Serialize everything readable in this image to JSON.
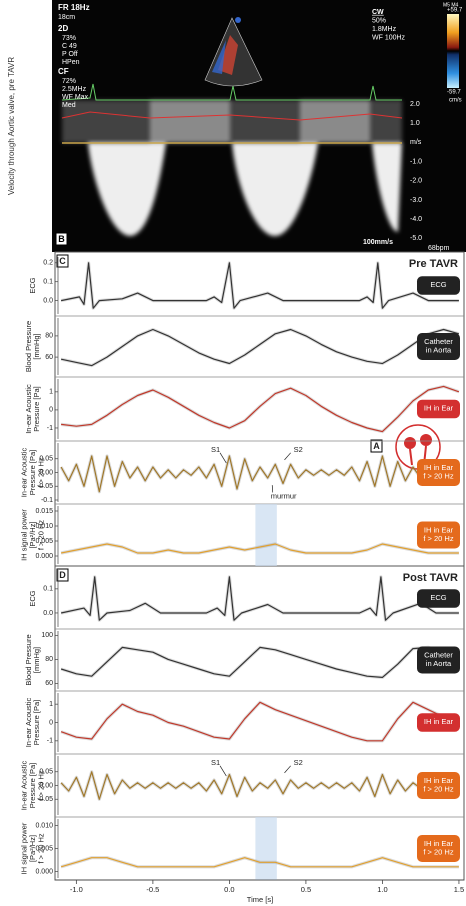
{
  "echo": {
    "ylabel": "Velocity through Aortic valve, pre TAVR",
    "left_info": [
      "FR 18Hz",
      "18cm",
      "2D",
      "73%",
      "C 49",
      "P Off",
      "HPen",
      "CF",
      "72%",
      "2.5MHz",
      "WF Max",
      "Med"
    ],
    "right_info": [
      "CW",
      "50%",
      "1.8MHz",
      "WF 100Hz"
    ],
    "scale_header": "M5 M4",
    "scale_top": "+59.7",
    "scale_bottom": "-59.7",
    "scale_unit": "cm/s",
    "velocity_ticks": [
      "2.0",
      "1.0",
      "m/s",
      "-1.0",
      "-2.0",
      "-3.0",
      "-4.0",
      "-5.0"
    ],
    "sweep": "100mm/s",
    "heart_rate": "68bpm",
    "label": "B"
  },
  "groups": [
    {
      "label": "C",
      "title": "Pre TAVR"
    },
    {
      "label": "D",
      "title": "Post TAVR"
    }
  ],
  "chart_data": [
    {
      "type": "line",
      "ylabel": [
        "ECG"
      ],
      "badge": [
        "ECG"
      ],
      "badge_color": "#222222",
      "x": [
        -1.1,
        -0.98,
        -0.95,
        -0.92,
        -0.89,
        -0.85,
        -0.7,
        -0.6,
        -0.5,
        -0.15,
        -0.1,
        -0.05,
        0.0,
        0.03,
        0.07,
        0.25,
        0.35,
        0.85,
        0.9,
        0.94,
        0.97,
        1.0,
        1.04,
        1.2,
        1.3,
        1.5
      ],
      "series": [
        {
          "color": "#333333",
          "values": [
            0.0,
            0.02,
            -0.02,
            0.2,
            -0.04,
            0.0,
            0.01,
            0.04,
            0.0,
            0.0,
            0.02,
            -0.01,
            0.2,
            -0.04,
            0.0,
            0.04,
            0.0,
            0.0,
            0.02,
            -0.01,
            0.2,
            -0.04,
            0.0,
            0.04,
            0.0,
            0.0
          ]
        }
      ],
      "ylim": [
        -0.06,
        0.22
      ],
      "yticks": [
        0.2,
        0.1,
        {
          "value": 0,
          "label": "0.0"
        }
      ]
    },
    {
      "type": "line",
      "ylabel": [
        "Blood Pressure",
        "[mmHg]"
      ],
      "badge": [
        "Catheter",
        "in Aorta"
      ],
      "badge_color": "#222222",
      "x": [
        -1.1,
        -1.0,
        -0.9,
        -0.8,
        -0.7,
        -0.6,
        -0.5,
        -0.4,
        -0.3,
        -0.2,
        -0.1,
        0.0,
        0.1,
        0.2,
        0.3,
        0.4,
        0.5,
        0.6,
        0.7,
        0.8,
        0.9,
        1.0,
        1.1,
        1.2,
        1.3,
        1.4,
        1.5
      ],
      "series": [
        {
          "color": "#333333",
          "values": [
            58,
            55,
            52,
            60,
            70,
            80,
            86,
            80,
            72,
            64,
            58,
            54,
            62,
            72,
            82,
            86,
            80,
            72,
            65,
            60,
            56,
            54,
            62,
            72,
            82,
            86,
            82
          ]
        }
      ],
      "ylim": [
        45,
        95
      ],
      "yticks": [
        80,
        60
      ]
    },
    {
      "type": "line",
      "ylabel": [
        "In-ear Acoustic",
        "Pressure [Pa]"
      ],
      "badge": [
        "IH in Ear"
      ],
      "badge_color": "#d32f2f",
      "marker_label": "A",
      "x": [
        -1.1,
        -1.0,
        -0.9,
        -0.8,
        -0.7,
        -0.6,
        -0.5,
        -0.4,
        -0.3,
        -0.2,
        -0.1,
        0.0,
        0.1,
        0.2,
        0.3,
        0.4,
        0.5,
        0.6,
        0.7,
        0.8,
        0.9,
        1.0,
        1.1,
        1.2,
        1.3,
        1.4,
        1.5
      ],
      "series": [
        {
          "color": "#c0392b",
          "values": [
            -0.8,
            -0.9,
            -0.8,
            -0.3,
            0.3,
            0.8,
            1.1,
            0.7,
            0.2,
            -0.3,
            -0.7,
            -1.0,
            -0.6,
            0.2,
            0.9,
            1.2,
            0.8,
            0.2,
            -0.3,
            -0.7,
            -1.0,
            -1.2,
            -0.4,
            0.5,
            1.1,
            1.3,
            1.0
          ]
        }
      ],
      "ylim": [
        -1.5,
        1.6
      ],
      "yticks": [
        1,
        0,
        -1
      ]
    },
    {
      "type": "line",
      "ylabel": [
        "In-ear Acoustic",
        "Pressure [Pa]",
        "f > 20 Hz"
      ],
      "badge": [
        "IH in Ear",
        "f > 20 Hz"
      ],
      "badge_color": "#e46a1c",
      "annotations": [
        "S1",
        "S2",
        "murmur"
      ],
      "x": [
        -1.1,
        -1.05,
        -1.0,
        -0.95,
        -0.9,
        -0.85,
        -0.8,
        -0.75,
        -0.7,
        -0.65,
        -0.6,
        -0.55,
        -0.5,
        -0.45,
        -0.4,
        -0.35,
        -0.3,
        -0.25,
        -0.2,
        -0.15,
        -0.1,
        -0.05,
        0.0,
        0.05,
        0.1,
        0.15,
        0.2,
        0.25,
        0.3,
        0.35,
        0.4,
        0.45,
        0.5,
        0.55,
        0.6,
        0.65,
        0.7,
        0.75,
        0.8,
        0.85,
        0.9,
        0.95,
        1.0,
        1.05,
        1.1,
        1.15,
        1.2,
        1.25,
        1.3,
        1.35,
        1.4,
        1.45,
        1.5
      ],
      "series": [
        {
          "color": "#a0782a",
          "values": [
            0.02,
            -0.03,
            0.03,
            -0.05,
            0.06,
            -0.07,
            0.06,
            -0.05,
            0.04,
            -0.02,
            0.02,
            -0.03,
            0.02,
            -0.02,
            0.01,
            -0.02,
            0.01,
            -0.01,
            0.02,
            -0.02,
            0.03,
            -0.05,
            0.06,
            -0.06,
            0.05,
            -0.03,
            0.02,
            -0.02,
            0.03,
            -0.04,
            0.03,
            -0.02,
            0.01,
            -0.01,
            0.01,
            -0.01,
            0.01,
            -0.01,
            0.02,
            -0.03,
            0.04,
            -0.05,
            0.06,
            -0.05,
            0.04,
            -0.03,
            0.02,
            -0.02,
            0.01,
            -0.02,
            0.02,
            -0.01,
            0.01
          ]
        }
      ],
      "ylim": [
        -0.1,
        0.1
      ],
      "yticks": [
        0.05,
        {
          "value": 0,
          "label": "0.00"
        },
        -0.05,
        -0.1
      ]
    },
    {
      "type": "line",
      "ylabel": [
        "IH signal power",
        "[Pa²/Hz]",
        "f > 20 Hz"
      ],
      "badge": [
        "IH in Ear",
        "f > 20 Hz"
      ],
      "badge_color": "#e46a1c",
      "highlight_x": [
        0.17,
        0.31
      ],
      "x": [
        -1.1,
        -1.0,
        -0.9,
        -0.8,
        -0.7,
        -0.6,
        -0.5,
        -0.4,
        -0.3,
        -0.2,
        -0.1,
        0.0,
        0.1,
        0.2,
        0.3,
        0.4,
        0.5,
        0.6,
        0.7,
        0.8,
        0.9,
        1.0,
        1.1,
        1.2,
        1.3,
        1.4,
        1.5
      ],
      "series": [
        {
          "color": "#e0a030",
          "values": [
            0.001,
            0.002,
            0.003,
            0.004,
            0.003,
            0.001,
            0.001,
            0.002,
            0.001,
            0.001,
            0.002,
            0.003,
            0.002,
            0.003,
            0.004,
            0.002,
            0.001,
            0.001,
            0.001,
            0.001,
            0.002,
            0.004,
            0.003,
            0.002,
            0.001,
            0.001,
            0.001
          ]
        }
      ],
      "ylim": [
        -0.002,
        0.016
      ],
      "yticks": [
        0.015,
        {
          "value": 0.01,
          "label": "0.010"
        },
        0.005,
        {
          "value": 0,
          "label": "0.000"
        }
      ]
    },
    {
      "type": "line",
      "ylabel": [
        "ECG"
      ],
      "badge": [
        "ECG"
      ],
      "badge_color": "#222222",
      "x": [
        -1.1,
        -0.95,
        -0.91,
        -0.88,
        -0.85,
        -0.8,
        -0.65,
        -0.55,
        -0.45,
        -0.15,
        -0.08,
        -0.03,
        0.0,
        0.03,
        0.08,
        0.25,
        0.35,
        0.85,
        0.92,
        0.96,
        0.99,
        1.02,
        1.07,
        1.25,
        1.35,
        1.5
      ],
      "series": [
        {
          "color": "#333333",
          "values": [
            0.0,
            0.02,
            -0.01,
            0.15,
            -0.03,
            0.0,
            0.01,
            0.04,
            0.0,
            0.0,
            0.02,
            -0.01,
            0.15,
            -0.03,
            0.0,
            0.035,
            0.0,
            0.0,
            0.02,
            -0.01,
            0.15,
            -0.03,
            0.0,
            0.04,
            0.0,
            0.0
          ]
        }
      ],
      "ylim": [
        -0.05,
        0.17
      ],
      "yticks": [
        0.1,
        {
          "value": 0,
          "label": "0.0"
        }
      ]
    },
    {
      "type": "line",
      "ylabel": [
        "Blood Pressure",
        "[mmHg]"
      ],
      "badge": [
        "Catheter",
        "in Aorta"
      ],
      "badge_color": "#222222",
      "x": [
        -1.1,
        -1.0,
        -0.9,
        -0.8,
        -0.7,
        -0.6,
        -0.5,
        -0.4,
        -0.3,
        -0.2,
        -0.1,
        0.0,
        0.1,
        0.2,
        0.3,
        0.4,
        0.5,
        0.6,
        0.7,
        0.8,
        0.9,
        1.0,
        1.1,
        1.2,
        1.3,
        1.4,
        1.5
      ],
      "series": [
        {
          "color": "#333333",
          "values": [
            72,
            68,
            66,
            78,
            90,
            88,
            86,
            80,
            76,
            72,
            68,
            66,
            78,
            90,
            88,
            84,
            80,
            76,
            72,
            69,
            66,
            65,
            76,
            89,
            90,
            86,
            80
          ]
        }
      ],
      "ylim": [
        57,
        102
      ],
      "yticks": [
        100,
        80,
        60
      ]
    },
    {
      "type": "line",
      "ylabel": [
        "In-ear Acoustic",
        "Pressure [Pa]"
      ],
      "badge": [
        "IH in Ear"
      ],
      "badge_color": "#d32f2f",
      "x": [
        -1.1,
        -1.0,
        -0.9,
        -0.8,
        -0.7,
        -0.6,
        -0.5,
        -0.4,
        -0.3,
        -0.2,
        -0.1,
        0.0,
        0.1,
        0.2,
        0.3,
        0.4,
        0.5,
        0.6,
        0.7,
        0.8,
        0.9,
        1.0,
        1.1,
        1.2,
        1.3,
        1.4,
        1.5
      ],
      "series": [
        {
          "color": "#c0392b",
          "values": [
            -0.5,
            -0.8,
            -0.9,
            0.2,
            1.0,
            0.6,
            0.4,
            0.0,
            -0.2,
            -0.5,
            -0.8,
            -0.9,
            0.2,
            1.1,
            0.7,
            0.4,
            0.1,
            -0.2,
            -0.5,
            -0.8,
            -1.0,
            -1.0,
            0.2,
            1.1,
            0.7,
            0.3,
            0.0
          ]
        }
      ],
      "ylim": [
        -1.5,
        1.5
      ],
      "yticks": [
        1,
        0,
        -1
      ]
    },
    {
      "type": "line",
      "ylabel": [
        "In-ear Acoustic",
        "Pressure [Pa]",
        "f > 20 Hz"
      ],
      "badge": [
        "IH in Ear",
        "f > 20 Hz"
      ],
      "badge_color": "#e46a1c",
      "annotations": [
        "S1",
        "S2"
      ],
      "x": [
        -1.1,
        -1.05,
        -1.0,
        -0.95,
        -0.9,
        -0.85,
        -0.8,
        -0.75,
        -0.7,
        -0.65,
        -0.6,
        -0.55,
        -0.5,
        -0.45,
        -0.4,
        -0.35,
        -0.3,
        -0.25,
        -0.2,
        -0.15,
        -0.1,
        -0.05,
        0.0,
        0.05,
        0.1,
        0.15,
        0.2,
        0.25,
        0.3,
        0.35,
        0.4,
        0.45,
        0.5,
        0.55,
        0.6,
        0.65,
        0.7,
        0.75,
        0.8,
        0.85,
        0.9,
        0.95,
        1.0,
        1.05,
        1.1,
        1.15,
        1.2,
        1.25,
        1.3,
        1.35,
        1.4,
        1.45,
        1.5
      ],
      "series": [
        {
          "color": "#a0782a",
          "values": [
            0.01,
            -0.02,
            0.03,
            -0.04,
            0.05,
            -0.05,
            0.04,
            -0.03,
            0.02,
            -0.01,
            0.01,
            -0.01,
            0.01,
            -0.01,
            0.01,
            -0.01,
            0.01,
            -0.01,
            0.01,
            -0.02,
            0.02,
            -0.03,
            0.04,
            -0.04,
            0.03,
            -0.02,
            0.01,
            -0.01,
            0.02,
            -0.03,
            0.02,
            -0.01,
            0.01,
            -0.01,
            0.01,
            -0.01,
            0.01,
            -0.01,
            0.01,
            -0.02,
            0.03,
            -0.04,
            0.04,
            -0.03,
            0.02,
            -0.02,
            0.01,
            -0.01,
            0.01,
            -0.01,
            0.01,
            -0.01,
            0.01
          ]
        }
      ],
      "ylim": [
        -0.1,
        0.1
      ],
      "yticks": [
        0.05,
        {
          "value": 0,
          "label": "0.00"
        },
        -0.05
      ]
    },
    {
      "type": "line",
      "ylabel": [
        "IH signal power",
        "[Pa²/Hz]",
        "f > 20 Hz"
      ],
      "badge": [
        "IH in Ear",
        "f > 20 Hz"
      ],
      "badge_color": "#e46a1c",
      "highlight_x": [
        0.17,
        0.31
      ],
      "x": [
        -1.1,
        -1.0,
        -0.9,
        -0.8,
        -0.7,
        -0.6,
        -0.5,
        -0.4,
        -0.3,
        -0.2,
        -0.1,
        0.0,
        0.1,
        0.2,
        0.3,
        0.4,
        0.5,
        0.6,
        0.7,
        0.8,
        0.9,
        1.0,
        1.1,
        1.2,
        1.3,
        1.4,
        1.5
      ],
      "series": [
        {
          "color": "#e0a030",
          "values": [
            0.001,
            0.002,
            0.003,
            0.003,
            0.002,
            0.001,
            0.001,
            0.001,
            0.001,
            0.001,
            0.001,
            0.002,
            0.003,
            0.002,
            0.002,
            0.001,
            0.001,
            0.001,
            0.001,
            0.001,
            0.002,
            0.003,
            0.002,
            0.001,
            0.001,
            0.001,
            0.001
          ]
        }
      ],
      "ylim": [
        -0.001,
        0.011
      ],
      "yticks": [
        {
          "value": 0.01,
          "label": "0.010"
        },
        0.005,
        {
          "value": 0,
          "label": "0.000"
        }
      ]
    }
  ],
  "time_axis": {
    "label": "Time [s]",
    "xlim": [
      -1.12,
      1.52
    ],
    "xticks": [
      {
        "value": -1,
        "label": "-1.0"
      },
      -0.5,
      {
        "value": 0,
        "label": "0.0"
      },
      0.5,
      {
        "value": 1,
        "label": "1.0"
      },
      1.5
    ]
  }
}
